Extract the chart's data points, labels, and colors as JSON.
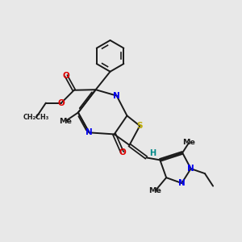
{
  "bg": "#e8e8e8",
  "bc": "#1a1a1a",
  "N_color": "#0000ee",
  "O_color": "#dd0000",
  "S_color": "#bbaa00",
  "H_color": "#008888",
  "lw": 1.4,
  "xlim": [
    0,
    10
  ],
  "ylim": [
    0,
    10
  ]
}
